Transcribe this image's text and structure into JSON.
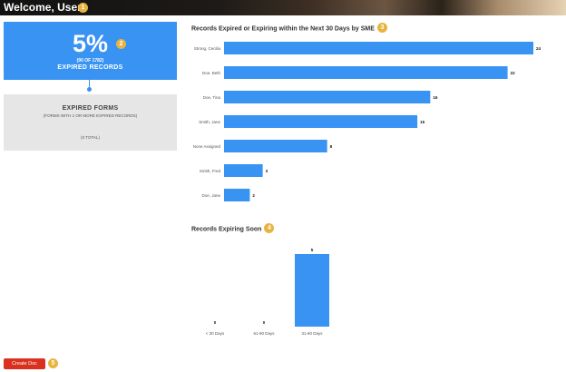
{
  "header": {
    "title": "Welcome, User",
    "badge": "1"
  },
  "expired_card": {
    "percent": "5%",
    "detail": "(90 OF 1782)",
    "label": "EXPIRED RECORDS",
    "badge": "2"
  },
  "forms_card": {
    "title": "EXPIRED FORMS",
    "subtitle": "(FORMS WITH 1 OR MORE EXPIRED RECORDS)",
    "total": "(0 TOTAL)"
  },
  "colors": {
    "primary": "#3893f3",
    "badge": "#e8b43f",
    "danger": "#d9301f",
    "panel": "#e6e6e6"
  },
  "chart_data": [
    {
      "type": "bar",
      "orientation": "horizontal",
      "title": "Records Expired or Expiring within the Next 30 Days by SME",
      "badge": "3",
      "categories": [
        "Strong, Cecilia",
        "Doe, Beth",
        "Doe, Tina",
        "Smith, Jane",
        "None Assigned",
        "Smith, Fred",
        "Doe, Jane"
      ],
      "values": [
        24,
        22,
        16,
        15,
        8,
        3,
        2
      ],
      "xlim": [
        0,
        24
      ],
      "grid": false,
      "legend": "none"
    },
    {
      "type": "bar",
      "orientation": "vertical",
      "title": "Records Expiring Soon",
      "badge": "4",
      "categories": [
        "< 30 Days",
        "61-90 Days",
        "31-60 Days"
      ],
      "values": [
        0,
        0,
        5
      ],
      "ylim": [
        0,
        5
      ],
      "grid": false,
      "legend": "none"
    }
  ],
  "actions": {
    "create_doc": "Create Doc",
    "create_badge": "5"
  }
}
